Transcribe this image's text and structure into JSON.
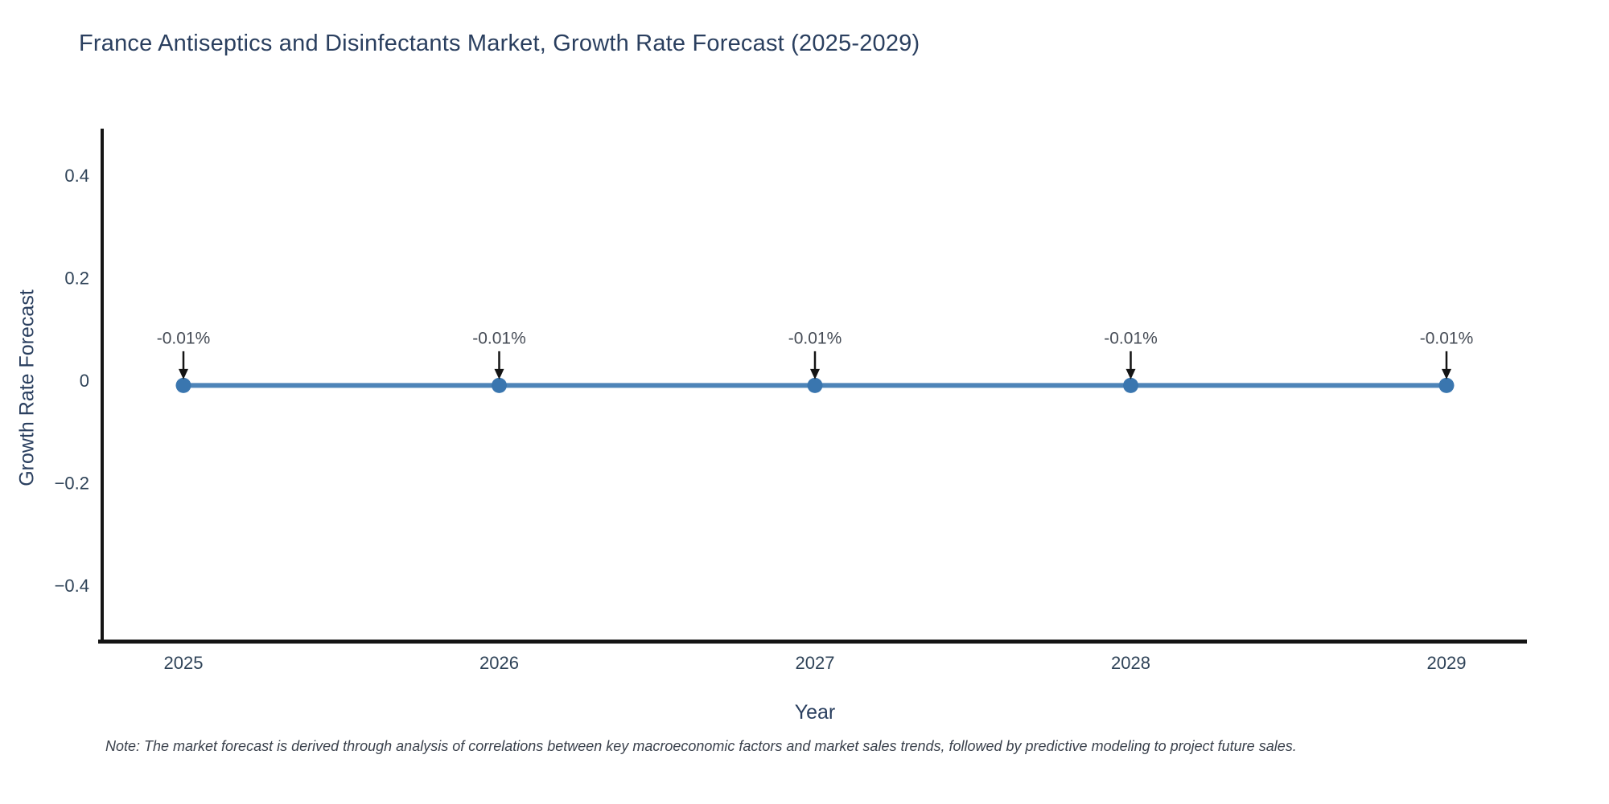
{
  "note": "Note: The market forecast is derived through analysis of correlations between key macroeconomic factors and market sales trends, followed by predictive modeling to project future sales.",
  "chart_data": {
    "type": "line",
    "title": "France Antiseptics and Disinfectants Market, Growth Rate Forecast (2025-2029)",
    "xlabel": "Year",
    "ylabel": "Growth Rate Forecast",
    "categories": [
      "2025",
      "2026",
      "2027",
      "2028",
      "2029"
    ],
    "series": [
      {
        "name": "Growth Rate Forecast",
        "values": [
          -0.01,
          -0.01,
          -0.01,
          -0.01,
          -0.01
        ],
        "point_labels": [
          "-0.01%",
          "-0.01%",
          "-0.01%",
          "-0.01%",
          "-0.01%"
        ]
      }
    ],
    "ylim": [
      -0.51,
      0.49
    ],
    "yticks": [
      0.4,
      0.2,
      0,
      -0.2,
      -0.4
    ],
    "ytick_labels": [
      "0.4",
      "0.2",
      "0",
      "−0.2",
      "−0.4"
    ],
    "grid": false,
    "legend_position": "none",
    "annotations_have_arrows": true,
    "colors": {
      "line": "#4d84b8",
      "marker": "#3a76af",
      "axis": "#141414",
      "title_text": "#2a3f5f",
      "tick_text": "#2f4358",
      "annotation_text": "#464c56",
      "arrow": "#141414",
      "background": "#ffffff"
    }
  }
}
